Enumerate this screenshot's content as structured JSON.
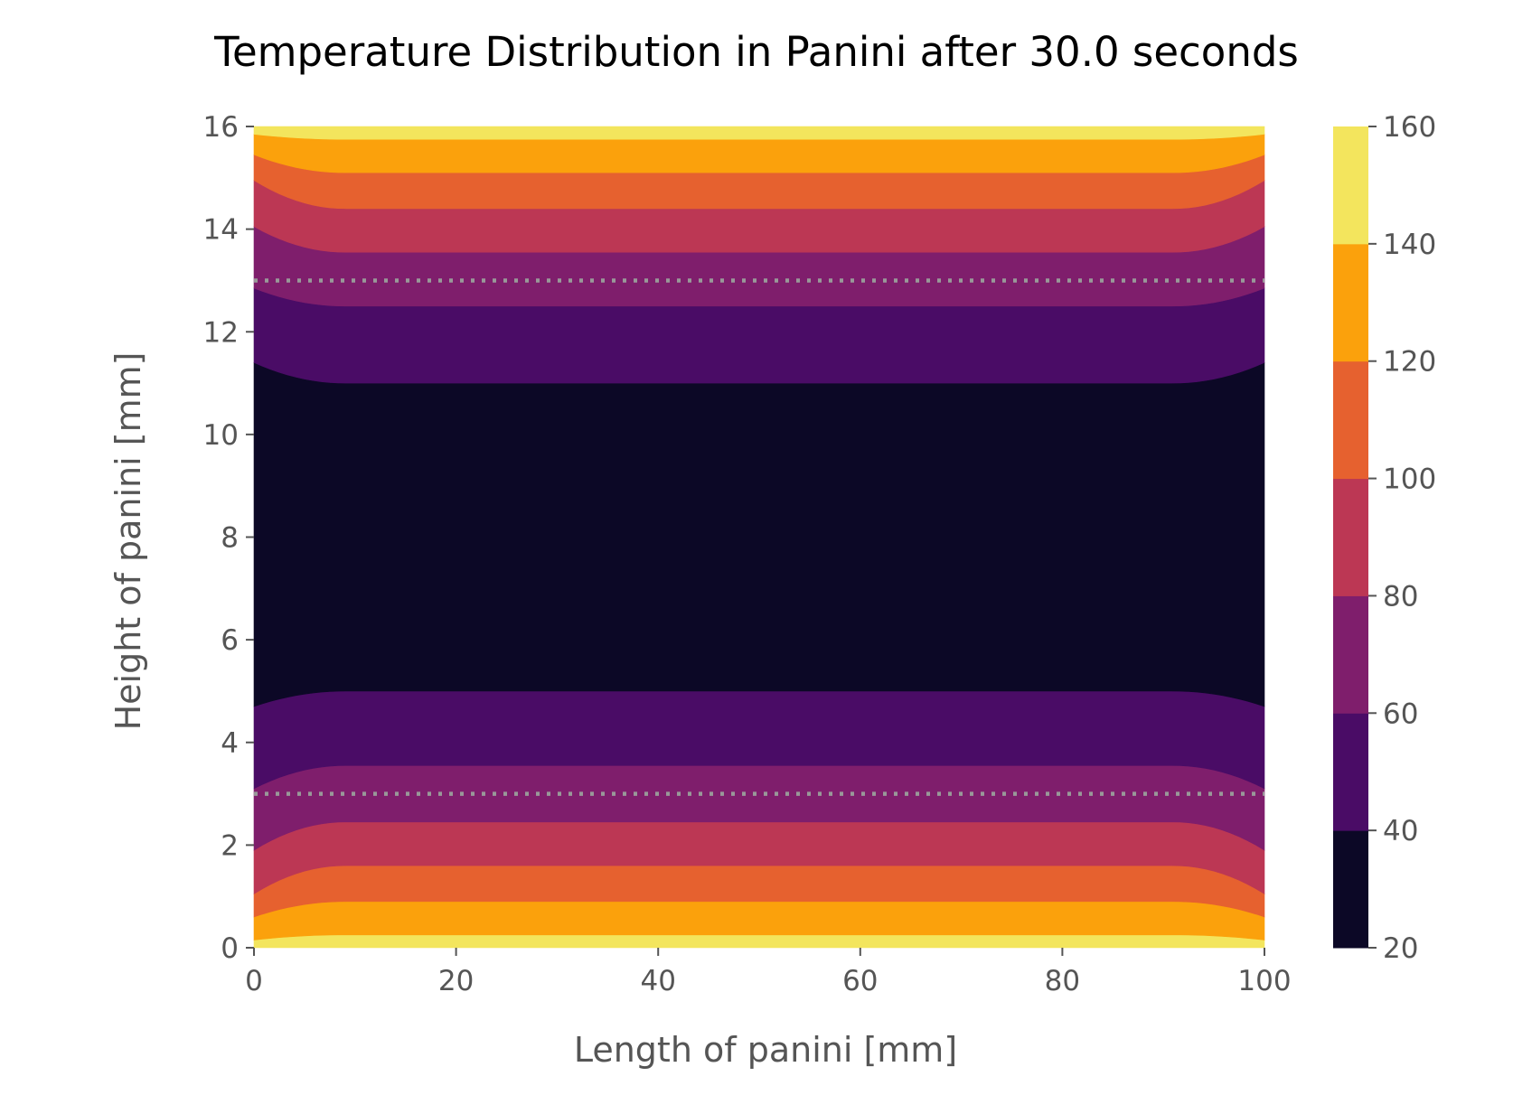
{
  "chart_data": {
    "type": "heatmap",
    "subtype": "filled-contour",
    "title": "Temperature Distribution in Panini after 30.0 seconds",
    "xlabel": "Length of panini [mm]",
    "ylabel": "Height of panini [mm]",
    "xlim": [
      0,
      100
    ],
    "ylim": [
      0,
      16
    ],
    "x_ticks": [
      0,
      20,
      40,
      60,
      80,
      100
    ],
    "y_ticks": [
      0,
      2,
      4,
      6,
      8,
      10,
      12,
      14,
      16
    ],
    "grid": false,
    "colormap": "inferno",
    "levels": [
      20,
      40,
      60,
      80,
      100,
      120,
      140,
      160
    ],
    "level_colors": [
      "#0c0826",
      "#4a0c66",
      "#7f1e6c",
      "#bc3754",
      "#e6612f",
      "#fba10c",
      "#f3e55d"
    ],
    "colorbar": {
      "position": "right",
      "ticks": [
        20,
        40,
        60,
        80,
        100,
        120,
        140,
        160
      ]
    },
    "boundaries": [
      {
        "level": 140,
        "y_center": 0.25,
        "y_edge": 0.15
      },
      {
        "level": 120,
        "y_center": 0.9,
        "y_edge": 0.6
      },
      {
        "level": 100,
        "y_center": 1.6,
        "y_edge": 1.05
      },
      {
        "level": 80,
        "y_center": 2.45,
        "y_edge": 1.9
      },
      {
        "level": 60,
        "y_center": 3.55,
        "y_edge": 3.1
      },
      {
        "level": 40,
        "y_center": 5.0,
        "y_edge": 4.7
      },
      {
        "level": 40,
        "y_center": 11.0,
        "y_edge": 11.4
      },
      {
        "level": 60,
        "y_center": 12.5,
        "y_edge": 12.85
      },
      {
        "level": 80,
        "y_center": 13.55,
        "y_edge": 14.05
      },
      {
        "level": 100,
        "y_center": 14.4,
        "y_edge": 14.95
      },
      {
        "level": 120,
        "y_center": 15.1,
        "y_edge": 15.45
      },
      {
        "level": 140,
        "y_center": 15.75,
        "y_edge": 15.85
      }
    ],
    "reference_lines": [
      {
        "orientation": "horizontal",
        "y": 3,
        "style": "dotted",
        "color": "#999999"
      },
      {
        "orientation": "horizontal",
        "y": 13,
        "style": "dotted",
        "color": "#999999"
      }
    ]
  }
}
